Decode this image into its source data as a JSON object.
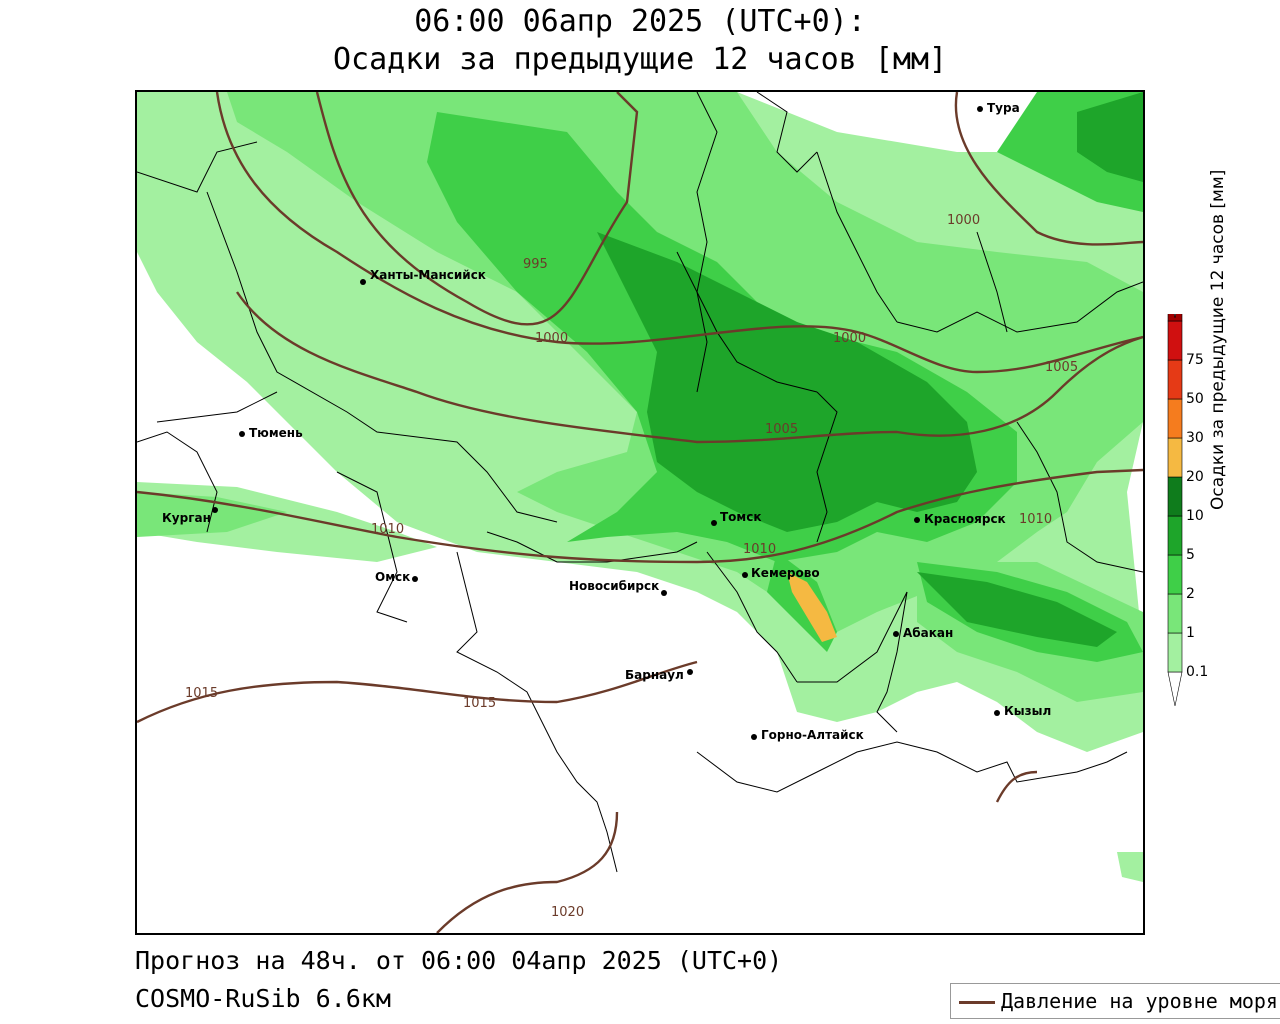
{
  "header": {
    "title_line1": "06:00 06апр 2025 (UTC+0):",
    "title_line2": "Осадки за предыдущие 12 часов [мм]"
  },
  "footer": {
    "forecast": "Прогноз на 48ч. от 06:00 04апр 2025 (UTC+0)",
    "model": "COSMO-RuSib 6.6км"
  },
  "legend": {
    "pressure_label": "Давление на уровне моря",
    "pressure_color": "#6b3b2a"
  },
  "colorbar": {
    "title": "Осадки за предыдущие 12 часов [мм]",
    "levels": [
      "0.1",
      "1",
      "2",
      "5",
      "10",
      "20",
      "30",
      "50",
      "75"
    ],
    "colors": [
      "#ffffff",
      "#a3f0a0",
      "#79e679",
      "#3fcf48",
      "#1ea52a",
      "#0f7c1c",
      "#f5b942",
      "#f57c1e",
      "#e53a16",
      "#d01010",
      "#a00000",
      "#9a9a9a"
    ]
  },
  "cities": [
    {
      "name": "Тура"
    },
    {
      "name": "Ханты-Мансийск"
    },
    {
      "name": "Тюмень"
    },
    {
      "name": "Курган"
    },
    {
      "name": "Омск"
    },
    {
      "name": "Новосибирск"
    },
    {
      "name": "Томск"
    },
    {
      "name": "Кемерово"
    },
    {
      "name": "Красноярск"
    },
    {
      "name": "Абакан"
    },
    {
      "name": "Барнаул"
    },
    {
      "name": "Горно-Алтайск"
    },
    {
      "name": "Кызыл"
    }
  ],
  "isobar_labels": [
    "995",
    "1000",
    "1000",
    "1000",
    "1005",
    "1005",
    "1010",
    "1010",
    "1010",
    "1015",
    "1015",
    "1020"
  ]
}
